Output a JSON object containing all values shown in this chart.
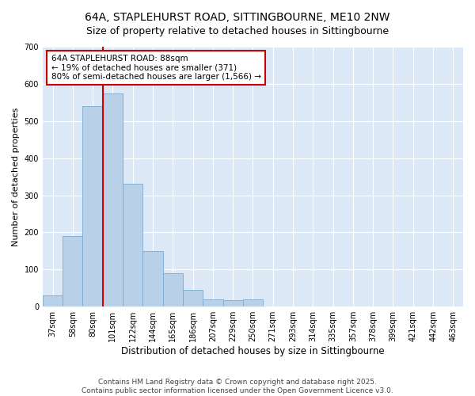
{
  "title": "64A, STAPLEHURST ROAD, SITTINGBOURNE, ME10 2NW",
  "subtitle": "Size of property relative to detached houses in Sittingbourne",
  "xlabel": "Distribution of detached houses by size in Sittingbourne",
  "ylabel": "Number of detached properties",
  "categories": [
    "37sqm",
    "58sqm",
    "80sqm",
    "101sqm",
    "122sqm",
    "144sqm",
    "165sqm",
    "186sqm",
    "207sqm",
    "229sqm",
    "250sqm",
    "271sqm",
    "293sqm",
    "314sqm",
    "335sqm",
    "357sqm",
    "378sqm",
    "399sqm",
    "421sqm",
    "442sqm",
    "463sqm"
  ],
  "values": [
    30,
    190,
    540,
    575,
    330,
    150,
    90,
    45,
    20,
    18,
    20,
    0,
    0,
    0,
    0,
    0,
    0,
    0,
    0,
    0,
    0
  ],
  "bar_color": "#b8d0e8",
  "bar_edge_color": "#7aaad0",
  "vline_x_index": 2,
  "vline_color": "#cc0000",
  "annotation_text": "64A STAPLEHURST ROAD: 88sqm\n← 19% of detached houses are smaller (371)\n80% of semi-detached houses are larger (1,566) →",
  "annotation_box_color": "#ffffff",
  "annotation_box_edge": "#cc0000",
  "ylim": [
    0,
    700
  ],
  "yticks": [
    0,
    100,
    200,
    300,
    400,
    500,
    600,
    700
  ],
  "fig_bg_color": "#ffffff",
  "plot_bg_color": "#dce8f5",
  "footer_text": "Contains HM Land Registry data © Crown copyright and database right 2025.\nContains public sector information licensed under the Open Government Licence v3.0.",
  "title_fontsize": 10,
  "xlabel_fontsize": 8.5,
  "ylabel_fontsize": 8,
  "tick_fontsize": 7,
  "annotation_fontsize": 7.5,
  "footer_fontsize": 6.5
}
